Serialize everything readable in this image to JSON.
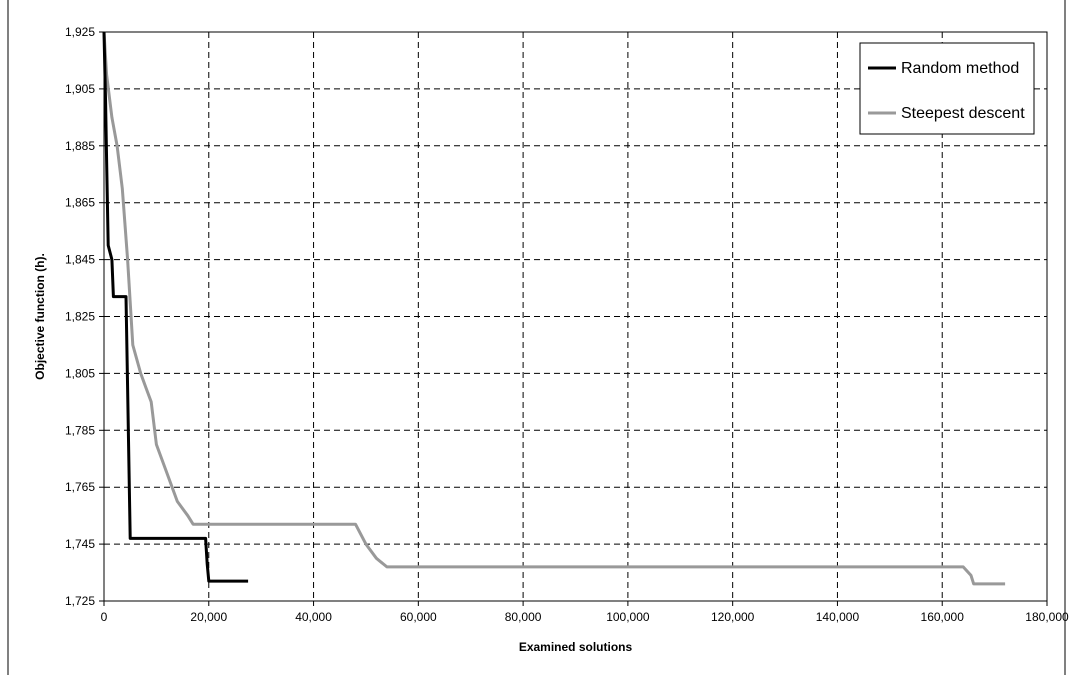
{
  "chart_data": {
    "type": "line",
    "title": "",
    "xlabel": "Examined solutions",
    "ylabel": "Objective function (h).",
    "xlim": [
      0,
      180000
    ],
    "ylim": [
      1.725,
      1.925
    ],
    "x_ticks": [
      0,
      20000,
      40000,
      60000,
      80000,
      100000,
      120000,
      140000,
      160000,
      180000
    ],
    "y_ticks": [
      1.725,
      1.745,
      1.765,
      1.785,
      1.805,
      1.825,
      1.845,
      1.865,
      1.885,
      1.905,
      1.925
    ],
    "x_tick_labels": [
      "0",
      "20,000",
      "40,000",
      "60,000",
      "80,000",
      "100,000",
      "120,000",
      "140,000",
      "160,000",
      "180,000"
    ],
    "y_tick_labels": [
      "1,725",
      "1,745",
      "1,765",
      "1,785",
      "1,805",
      "1,825",
      "1,845",
      "1,865",
      "1,885",
      "1,905",
      "1,925"
    ],
    "grid": true,
    "legend_position": "top-right",
    "series": [
      {
        "name": "Random method",
        "color": "#000000",
        "points": [
          [
            0,
            1.925
          ],
          [
            300,
            1.9
          ],
          [
            500,
            1.88
          ],
          [
            800,
            1.85
          ],
          [
            1500,
            1.845
          ],
          [
            1800,
            1.832
          ],
          [
            4200,
            1.832
          ],
          [
            4500,
            1.8
          ],
          [
            5000,
            1.747
          ],
          [
            19400,
            1.747
          ],
          [
            19700,
            1.738
          ],
          [
            20000,
            1.732
          ],
          [
            27500,
            1.732
          ]
        ]
      },
      {
        "name": "Steepest descent",
        "color": "#999999",
        "points": [
          [
            0,
            1.925
          ],
          [
            500,
            1.91
          ],
          [
            1500,
            1.895
          ],
          [
            2500,
            1.885
          ],
          [
            3500,
            1.87
          ],
          [
            4500,
            1.845
          ],
          [
            5500,
            1.815
          ],
          [
            7000,
            1.805
          ],
          [
            8000,
            1.8
          ],
          [
            9000,
            1.795
          ],
          [
            10000,
            1.78
          ],
          [
            12000,
            1.77
          ],
          [
            14000,
            1.76
          ],
          [
            16000,
            1.755
          ],
          [
            17000,
            1.752
          ],
          [
            20000,
            1.752
          ],
          [
            48000,
            1.752
          ],
          [
            50000,
            1.745
          ],
          [
            52000,
            1.74
          ],
          [
            54000,
            1.737
          ],
          [
            164000,
            1.737
          ],
          [
            165500,
            1.734
          ],
          [
            166000,
            1.731
          ],
          [
            172000,
            1.731
          ]
        ]
      }
    ]
  }
}
